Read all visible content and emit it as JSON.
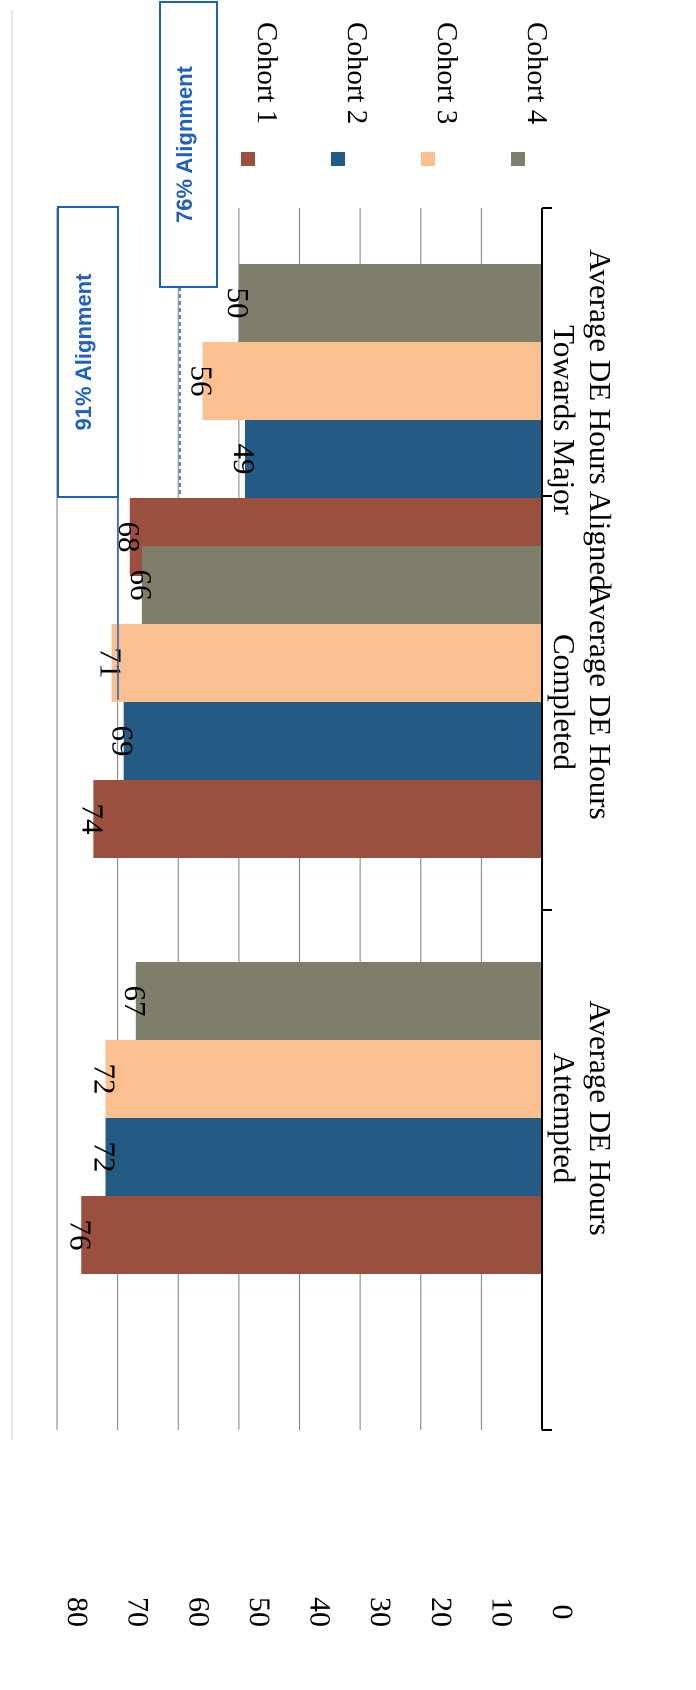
{
  "colors": {
    "series": [
      "#9B4F3F",
      "#245B84",
      "#FAC08F",
      "#7E7E6B"
    ],
    "callout": "#1F5FBF",
    "grid": "#7f7f7f",
    "axis": "#000000"
  },
  "chart_data": {
    "type": "bar",
    "orientation": "vertical (page rotated 90 degrees clockwise)",
    "categories": [
      {
        "lines": [
          "Average DE Hours",
          "Attempted"
        ]
      },
      {
        "lines": [
          "Average DE Hours",
          "Completed"
        ]
      },
      {
        "lines": [
          "Average DE Hours Aligned",
          "Towards Major"
        ]
      }
    ],
    "series": [
      {
        "name": "Cohort 1",
        "values": [
          76,
          74,
          68
        ],
        "labels": [
          "76",
          "74",
          "68"
        ]
      },
      {
        "name": "Cohort 2",
        "values": [
          72,
          69,
          49
        ],
        "labels": [
          "72",
          "69",
          "49"
        ]
      },
      {
        "name": "Cohort 3",
        "values": [
          72,
          71,
          56
        ],
        "labels": [
          "72",
          "71",
          "56"
        ]
      },
      {
        "name": "Cohort 4",
        "values": [
          67,
          66,
          50
        ],
        "labels": [
          "67",
          "66",
          "50"
        ]
      }
    ],
    "ylim": [
      0,
      80
    ],
    "yticks": [
      "0",
      "10",
      "20",
      "30",
      "40",
      "50",
      "60",
      "70",
      "80"
    ],
    "grid": true,
    "legend": "right",
    "annotations": [
      {
        "text": "91% Alignment",
        "category": 2
      },
      {
        "text": "76% Alignment",
        "category": 2
      }
    ]
  }
}
